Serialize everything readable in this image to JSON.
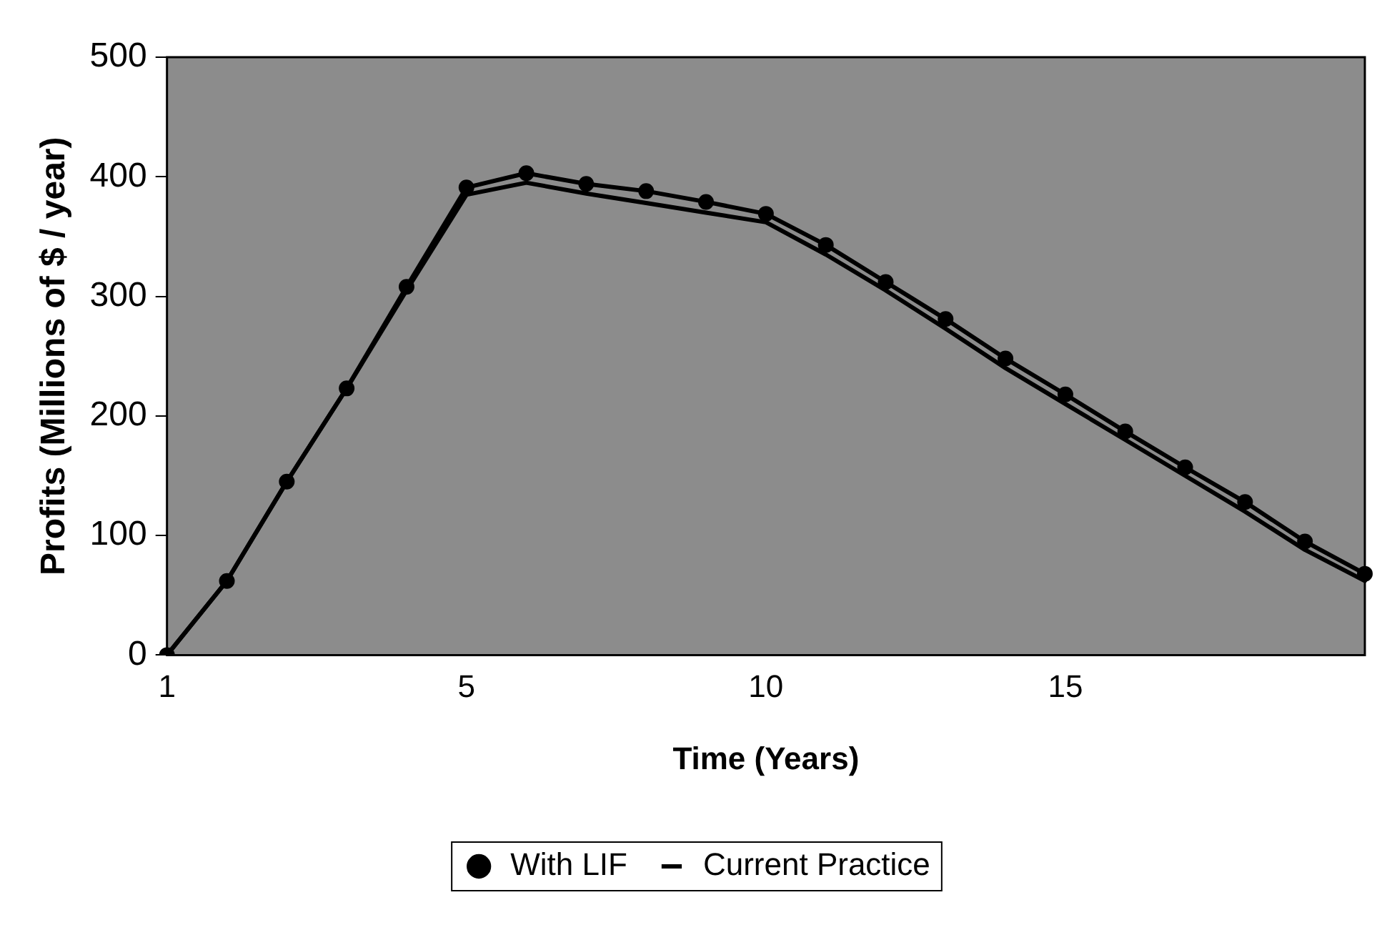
{
  "chart_data": {
    "type": "line",
    "xlabel": "Time (Years)",
    "ylabel": "Profits (Millions of $ / year)",
    "categories": [
      "1",
      null,
      null,
      null,
      null,
      "5",
      null,
      null,
      null,
      null,
      "10",
      null,
      null,
      null,
      null,
      "15",
      null,
      null,
      null,
      null,
      null
    ],
    "series": [
      {
        "name": "With LIF",
        "color": "#000000",
        "marker": "circle",
        "values": [
          0,
          62,
          145,
          223,
          308,
          391,
          403,
          394,
          388,
          379,
          369,
          343,
          312,
          281,
          248,
          218,
          187,
          157,
          128,
          95,
          68
        ]
      },
      {
        "name": "Current Practice",
        "color": "#000000",
        "marker": "none",
        "values": [
          0,
          62,
          145,
          223,
          305,
          385,
          395,
          386,
          378,
          370,
          362,
          335,
          305,
          273,
          240,
          210,
          180,
          150,
          120,
          88,
          62
        ]
      }
    ],
    "ylim": [
      0,
      500
    ],
    "yticks": [
      0,
      100,
      200,
      300,
      400,
      500
    ],
    "legend": "bottom",
    "line_style": "solid"
  }
}
